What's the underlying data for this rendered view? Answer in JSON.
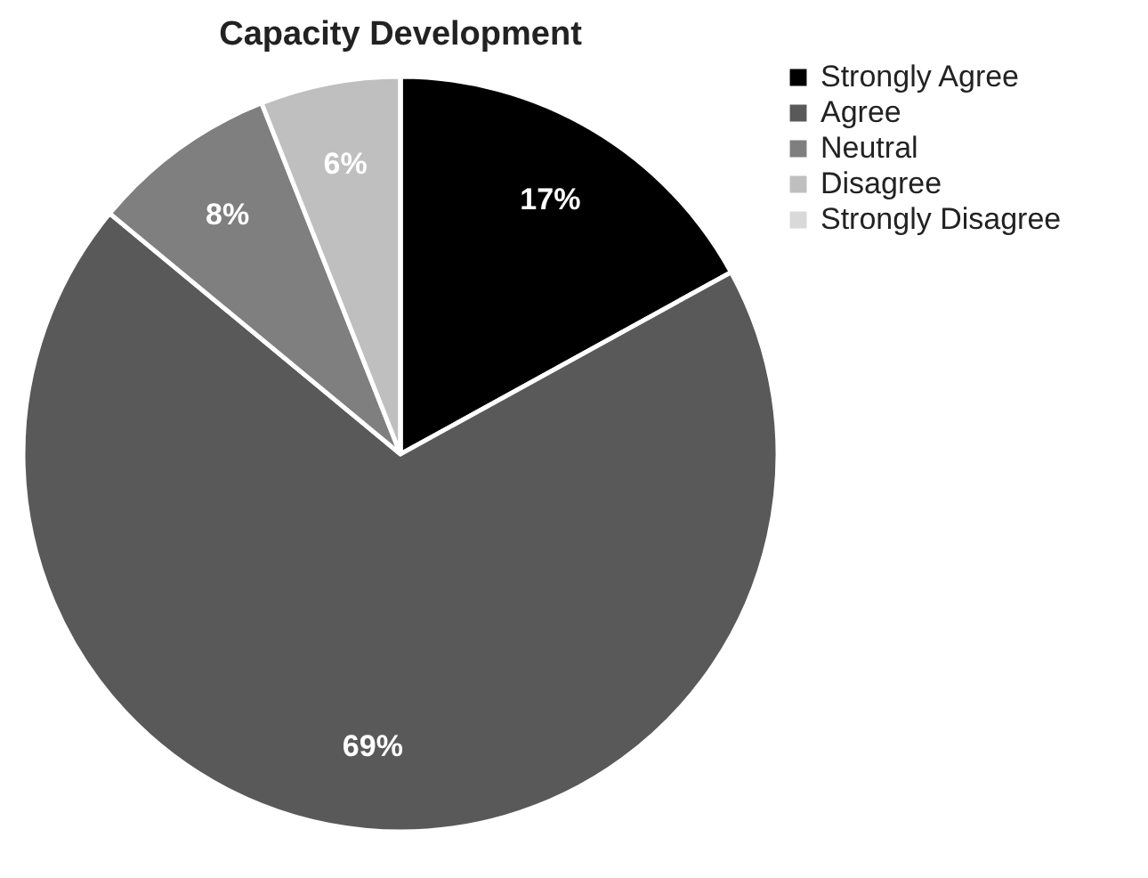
{
  "chart_data": {
    "type": "pie",
    "title": "Capacity Development",
    "categories": [
      "Strongly Agree",
      "Agree",
      "Neutral",
      "Disagree",
      "Strongly Disagree"
    ],
    "values": [
      17,
      69,
      8,
      6,
      0
    ],
    "value_labels": [
      "17%",
      "69%",
      "8%",
      "6%",
      null
    ],
    "colors": [
      "#000000",
      "#595959",
      "#7f7f7f",
      "#bfbfbf",
      "#d9d9d9"
    ],
    "legend": "right"
  }
}
